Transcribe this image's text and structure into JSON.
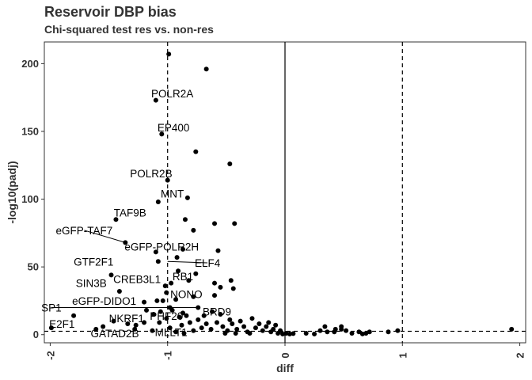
{
  "chart_data": {
    "type": "scatter",
    "title": "Reservoir DBP bias",
    "subtitle": "Chi-squared test res vs. non-res",
    "xlabel": "diff",
    "ylabel": "-log10(padj)",
    "xlim": [
      -2.05,
      2.05
    ],
    "ylim": [
      -6,
      216
    ],
    "x_ticks": [
      -2,
      -1,
      0,
      1,
      2
    ],
    "y_ticks": [
      0,
      50,
      100,
      150,
      200
    ],
    "grid": false,
    "reference_lines": {
      "vertical_dashed": [
        -1,
        1
      ],
      "vertical_solid": [
        0
      ],
      "horizontal_dashed": [
        2.5
      ]
    },
    "colors": {
      "points": "#000000",
      "border": "#333333",
      "text": "#333333"
    },
    "labels": [
      {
        "text": "POLR2A",
        "x": -0.96,
        "y": 178,
        "px": -1.1,
        "py": 173
      },
      {
        "text": "EP400",
        "x": -0.95,
        "y": 153,
        "px": -1.05,
        "py": 148
      },
      {
        "text": "POLR2B",
        "x": -1.14,
        "y": 119,
        "px": -1.0,
        "py": 114
      },
      {
        "text": "MNT",
        "x": -0.96,
        "y": 104,
        "px": -1.08,
        "py": 98
      },
      {
        "text": "TAF9B",
        "x": -1.32,
        "y": 90,
        "px": -1.44,
        "py": 85
      },
      {
        "text": "eGFP-TAF7",
        "x": -1.71,
        "y": 77,
        "px": -1.36,
        "py": 68,
        "line": true
      },
      {
        "text": "eGFP-POLR2H",
        "x": -1.05,
        "y": 65,
        "px": -0.87,
        "py": 63
      },
      {
        "text": "ELF4",
        "x": -0.66,
        "y": 53,
        "px": -1.0,
        "py": 54,
        "line": true
      },
      {
        "text": "GTF2F1",
        "x": -1.63,
        "y": 54,
        "px": -1.48,
        "py": 44
      },
      {
        "text": "CREB3L1",
        "x": -1.26,
        "y": 41,
        "px": -0.97,
        "py": 38
      },
      {
        "text": "RB1",
        "x": -0.87,
        "y": 43,
        "px": -0.82,
        "py": 40
      },
      {
        "text": "SIN3B",
        "x": -1.65,
        "y": 38,
        "px": -1.41,
        "py": 32
      },
      {
        "text": "NONO",
        "x": -0.84,
        "y": 30,
        "px": -0.78,
        "py": 28
      },
      {
        "text": "eGFP-DIDO1",
        "x": -1.54,
        "y": 25,
        "px": -1.2,
        "py": 24
      },
      {
        "text": "SP1",
        "x": -1.99,
        "y": 20,
        "px": -0.74,
        "py": 20,
        "line": true
      },
      {
        "text": "BRD9",
        "x": -0.58,
        "y": 17,
        "px": -0.78,
        "py": 19
      },
      {
        "text": "PHF20",
        "x": -1.01,
        "y": 14,
        "px": -1.06,
        "py": 17
      },
      {
        "text": "NKRF1",
        "x": -1.35,
        "y": 12,
        "px": -1.2,
        "py": 9
      },
      {
        "text": "E2F1",
        "x": -1.9,
        "y": 8,
        "px": -1.99,
        "py": 5
      },
      {
        "text": "GATAD2B",
        "x": -1.45,
        "y": 1,
        "px": -1.28,
        "py": 4
      },
      {
        "text": "MLLT1",
        "x": -0.97,
        "y": 2,
        "px": -0.98,
        "py": 5
      }
    ],
    "points": [
      [
        -0.99,
        207
      ],
      [
        -0.67,
        196
      ],
      [
        -1.1,
        173
      ],
      [
        -1.05,
        148
      ],
      [
        -0.76,
        135
      ],
      [
        -0.47,
        126
      ],
      [
        -1.0,
        114
      ],
      [
        -0.83,
        101
      ],
      [
        -1.08,
        98
      ],
      [
        -1.44,
        85
      ],
      [
        -0.85,
        85
      ],
      [
        -0.6,
        82
      ],
      [
        -0.43,
        82
      ],
      [
        -0.78,
        77
      ],
      [
        -1.36,
        68
      ],
      [
        -0.87,
        63
      ],
      [
        -1.1,
        61
      ],
      [
        -0.57,
        62
      ],
      [
        -1.08,
        54
      ],
      [
        -0.92,
        57
      ],
      [
        -1.48,
        44
      ],
      [
        -0.97,
        38
      ],
      [
        -0.82,
        40
      ],
      [
        -0.91,
        47
      ],
      [
        -0.76,
        45
      ],
      [
        -0.6,
        38
      ],
      [
        -0.55,
        35
      ],
      [
        -0.46,
        40
      ],
      [
        -0.44,
        34
      ],
      [
        -1.41,
        32
      ],
      [
        -1.01,
        31
      ],
      [
        -1.02,
        36
      ],
      [
        -0.78,
        28
      ],
      [
        -0.6,
        29
      ],
      [
        -1.2,
        24
      ],
      [
        -1.09,
        25
      ],
      [
        -1.04,
        25
      ],
      [
        -0.93,
        26
      ],
      [
        -0.74,
        20
      ],
      [
        -0.98,
        20
      ],
      [
        -0.96,
        18
      ],
      [
        -1.06,
        17
      ],
      [
        -1.12,
        15
      ],
      [
        -1.18,
        18
      ],
      [
        -0.87,
        16
      ],
      [
        -0.69,
        14
      ],
      [
        -0.62,
        17
      ],
      [
        -0.55,
        15
      ],
      [
        -0.47,
        11
      ],
      [
        -1.2,
        9
      ],
      [
        -1.27,
        7
      ],
      [
        -1.34,
        8
      ],
      [
        -1.46,
        10
      ],
      [
        -1.55,
        6
      ],
      [
        -1.61,
        4
      ],
      [
        -1.99,
        5
      ],
      [
        -1.8,
        14
      ],
      [
        -1.28,
        4
      ],
      [
        -0.98,
        5
      ],
      [
        -0.88,
        7
      ],
      [
        -0.81,
        9
      ],
      [
        -0.78,
        3
      ],
      [
        -0.74,
        11
      ],
      [
        -0.71,
        5
      ],
      [
        -0.67,
        8
      ],
      [
        -0.63,
        4
      ],
      [
        -0.58,
        9
      ],
      [
        -0.53,
        6
      ],
      [
        -0.49,
        3
      ],
      [
        -0.45,
        8
      ],
      [
        -0.41,
        4
      ],
      [
        -0.38,
        10
      ],
      [
        -0.35,
        6
      ],
      [
        -0.32,
        2
      ],
      [
        -0.28,
        12
      ],
      [
        -0.25,
        5
      ],
      [
        -0.22,
        8
      ],
      [
        -0.19,
        3
      ],
      [
        -0.16,
        6
      ],
      [
        -0.14,
        9
      ],
      [
        -0.12,
        2
      ],
      [
        -0.1,
        4
      ],
      [
        -0.08,
        7
      ],
      [
        -0.06,
        1
      ],
      [
        -0.04,
        3
      ],
      [
        -0.02,
        0.5
      ],
      [
        0.01,
        1
      ],
      [
        0.04,
        0.5
      ],
      [
        0.07,
        0.8
      ],
      [
        -0.93,
        2
      ],
      [
        -0.86,
        1
      ],
      [
        -0.51,
        1
      ],
      [
        -0.42,
        1
      ],
      [
        -0.3,
        1
      ],
      [
        -1.13,
        3
      ],
      [
        -1.07,
        9
      ],
      [
        -1.01,
        12
      ],
      [
        -0.9,
        13
      ],
      [
        -0.84,
        14
      ],
      [
        0.18,
        1
      ],
      [
        0.25,
        0.5
      ],
      [
        0.3,
        3
      ],
      [
        0.36,
        2
      ],
      [
        0.42,
        2
      ],
      [
        0.48,
        4
      ],
      [
        0.52,
        3
      ],
      [
        0.57,
        1
      ],
      [
        0.63,
        2
      ],
      [
        0.66,
        0.6
      ],
      [
        0.34,
        6
      ],
      [
        0.43,
        4
      ],
      [
        0.48,
        6
      ],
      [
        0.69,
        1
      ],
      [
        0.72,
        2
      ],
      [
        0.88,
        2
      ],
      [
        0.96,
        3
      ],
      [
        1.93,
        4
      ]
    ]
  }
}
